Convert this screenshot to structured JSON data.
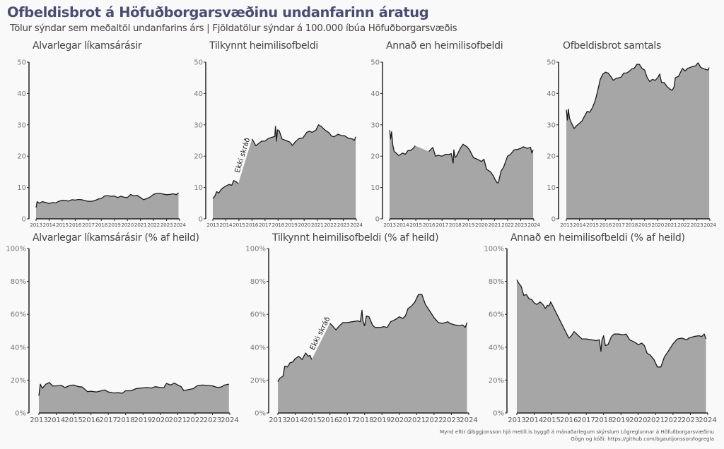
{
  "title": "Ofbeldisbrot á Höfuðborgarsvæðinu undanfarinn áratug",
  "subtitle": "Tölur sýndar sem meðaltöl undanfarins árs | Fjöldatölur sýndar á 100.000 íbúa Höfuðborgarsvæðis",
  "caption": {
    "line1": "Mynd eftir @bggjonsson hjá metill.is byggð á mánaðarlegum skýrslum Lögreglunnar á Höfuðborgarsvæðinu",
    "line2": "Gögn og kóði: https://github.com/bgautijonsson/logregla"
  },
  "colors": {
    "fill": "#a6a6a6",
    "line": "#1a1a1a",
    "axis": "#222222",
    "title": "#484d73"
  },
  "chart_data": [
    {
      "type": "area",
      "title": "Alvarlegar líkamsárásir",
      "xlabel": "",
      "ylabel": "",
      "xlim": [
        2013,
        2024
      ],
      "ylim": [
        0,
        50
      ],
      "xticks": [
        "2013",
        "2014",
        "2015",
        "2016",
        "2017",
        "2018",
        "2019",
        "2020",
        "2021",
        "2022",
        "2023",
        "2024"
      ],
      "yticks": [
        "0",
        "10",
        "20",
        "30",
        "40",
        "50"
      ],
      "x": [
        2013.0,
        2013.08,
        2013.25,
        2013.5,
        2013.75,
        2014.0,
        2014.25,
        2014.5,
        2014.75,
        2015.0,
        2015.25,
        2015.5,
        2015.75,
        2016.0,
        2016.25,
        2016.5,
        2016.75,
        2017.0,
        2017.25,
        2017.5,
        2017.75,
        2018.0,
        2018.25,
        2018.5,
        2018.75,
        2019.0,
        2019.25,
        2019.5,
        2019.75,
        2020.0,
        2020.25,
        2020.5,
        2020.75,
        2021.0,
        2021.25,
        2021.5,
        2021.75,
        2022.0,
        2022.25,
        2022.5,
        2022.75,
        2023.0,
        2023.25,
        2023.5,
        2023.75,
        2023.92
      ],
      "values": [
        3.6,
        5.5,
        5.0,
        5.5,
        5.2,
        4.9,
        5.2,
        5.1,
        5.6,
        5.9,
        5.8,
        5.7,
        6.1,
        6.0,
        6.2,
        6.1,
        5.8,
        5.6,
        5.6,
        5.8,
        6.3,
        6.5,
        7.3,
        7.4,
        7.2,
        7.3,
        6.8,
        7.2,
        6.9,
        6.8,
        7.8,
        7.3,
        7.5,
        6.8,
        6.1,
        6.5,
        7.0,
        7.8,
        8.1,
        8.1,
        7.9,
        7.7,
        7.8,
        8.0,
        7.7,
        8.3
      ],
      "gap": null
    },
    {
      "type": "area",
      "title": "Tilkynnt heimilisofbeldi",
      "xlabel": "",
      "ylabel": "",
      "xlim": [
        2013,
        2024
      ],
      "ylim": [
        0,
        50
      ],
      "xticks": [
        "2013",
        "2014",
        "2015",
        "2016",
        "2017",
        "2018",
        "2019",
        "2020",
        "2021",
        "2022",
        "2023",
        "2024"
      ],
      "yticks": [
        "0",
        "10",
        "20",
        "30",
        "40",
        "50"
      ],
      "x": [
        2013.0,
        2013.15,
        2013.3,
        2013.45,
        2013.6,
        2013.75,
        2014.0,
        2014.25,
        2014.45,
        2014.6,
        2014.8,
        2014.95,
        2016.0,
        2016.15,
        2016.3,
        2016.5,
        2016.75,
        2017.0,
        2017.25,
        2017.5,
        2017.75,
        2017.8,
        2017.85,
        2017.88,
        2017.95,
        2018.1,
        2018.3,
        2018.6,
        2018.9,
        2019.1,
        2019.3,
        2019.6,
        2019.9,
        2020.2,
        2020.4,
        2020.6,
        2020.9,
        2021.1,
        2021.3,
        2021.6,
        2021.9,
        2022.1,
        2022.3,
        2022.6,
        2022.9,
        2023.1,
        2023.4,
        2023.7,
        2023.85,
        2023.95
      ],
      "values": [
        6.5,
        7.2,
        8.7,
        8.2,
        9.2,
        9.8,
        10.5,
        11.0,
        10.7,
        12.2,
        11.8,
        11.2,
        25.5,
        24.5,
        23.3,
        24.0,
        24.8,
        24.8,
        25.6,
        26.0,
        26.3,
        29.5,
        27.0,
        24.8,
        28.4,
        28.0,
        25.5,
        25.0,
        24.5,
        23.4,
        24.5,
        25.6,
        25.8,
        27.6,
        28.0,
        27.6,
        28.3,
        30.0,
        29.5,
        28.3,
        27.5,
        26.4,
        26.2,
        27.0,
        26.5,
        26.5,
        25.7,
        25.5,
        25.0,
        26.2
      ],
      "annotation": {
        "text": "Ekki skráð",
        "from": 2014.95,
        "to": 2016.0
      }
    },
    {
      "type": "area",
      "title": "Annað en heimilisofbeldi",
      "xlabel": "",
      "ylabel": "",
      "xlim": [
        2013,
        2024
      ],
      "ylim": [
        0,
        50
      ],
      "xticks": [
        "2013",
        "2014",
        "2015",
        "2016",
        "2017",
        "2018",
        "2019",
        "2020",
        "2021",
        "2022",
        "2023",
        "2024"
      ],
      "yticks": [
        "0",
        "10",
        "20",
        "30",
        "40",
        "50"
      ],
      "x": [
        2013.0,
        2013.08,
        2013.15,
        2013.25,
        2013.35,
        2013.5,
        2013.7,
        2014.0,
        2014.2,
        2014.4,
        2014.6,
        2014.8,
        2014.95,
        2016.0,
        2016.3,
        2016.5,
        2016.7,
        2017.0,
        2017.3,
        2017.5,
        2017.7,
        2017.85,
        2017.9,
        2018.0,
        2018.1,
        2018.4,
        2018.6,
        2018.9,
        2019.1,
        2019.4,
        2019.7,
        2020.0,
        2020.2,
        2020.4,
        2020.7,
        2020.9,
        2021.05,
        2021.2,
        2021.3,
        2021.5,
        2021.7,
        2022.0,
        2022.2,
        2022.5,
        2022.8,
        2023.0,
        2023.2,
        2023.5,
        2023.75,
        2023.85,
        2023.95
      ],
      "values": [
        28.3,
        25.5,
        27.8,
        23.5,
        21.5,
        21.0,
        20.2,
        21.0,
        20.6,
        21.8,
        21.8,
        22.5,
        23.3,
        21.5,
        22.8,
        20.0,
        20.3,
        20.0,
        20.6,
        20.5,
        20.8,
        17.8,
        22.0,
        19.6,
        20.0,
        22.5,
        23.8,
        23.0,
        22.0,
        19.5,
        19.0,
        18.3,
        19.0,
        15.8,
        15.0,
        13.8,
        12.5,
        11.5,
        11.5,
        15.2,
        16.5,
        20.0,
        20.5,
        22.0,
        22.2,
        22.5,
        23.0,
        22.5,
        22.8,
        21.0,
        22.0
      ],
      "annotation": {
        "gap_from": 2014.95,
        "gap_to": 2016.0
      }
    },
    {
      "type": "area",
      "title": "Ofbeldisbrot samtals",
      "xlabel": "",
      "ylabel": "",
      "xlim": [
        2013,
        2024
      ],
      "ylim": [
        0,
        50
      ],
      "xticks": [
        "2013",
        "2014",
        "2015",
        "2016",
        "2017",
        "2018",
        "2019",
        "2020",
        "2021",
        "2022",
        "2023",
        "2024"
      ],
      "yticks": [
        "0",
        "10",
        "20",
        "30",
        "40",
        "50"
      ],
      "x": [
        2013.0,
        2013.08,
        2013.15,
        2013.25,
        2013.4,
        2013.6,
        2013.8,
        2014.0,
        2014.2,
        2014.4,
        2014.6,
        2014.8,
        2015.0,
        2015.2,
        2015.4,
        2015.6,
        2015.8,
        2016.0,
        2016.2,
        2016.4,
        2016.6,
        2016.8,
        2017.0,
        2017.2,
        2017.4,
        2017.6,
        2017.8,
        2018.0,
        2018.2,
        2018.4,
        2018.6,
        2018.8,
        2019.0,
        2019.2,
        2019.4,
        2019.6,
        2019.8,
        2020.0,
        2020.15,
        2020.3,
        2020.5,
        2020.7,
        2020.9,
        2021.1,
        2021.25,
        2021.35,
        2021.6,
        2021.9,
        2022.1,
        2022.3,
        2022.6,
        2022.9,
        2023.1,
        2023.3,
        2023.6,
        2023.85,
        2023.95
      ],
      "values": [
        34.8,
        31.5,
        35.0,
        32.0,
        30.5,
        28.8,
        29.8,
        30.5,
        31.2,
        32.8,
        34.3,
        34.0,
        35.5,
        37.5,
        40.8,
        44.5,
        46.2,
        46.8,
        46.5,
        45.5,
        44.2,
        44.8,
        45.0,
        45.2,
        46.5,
        46.5,
        47.0,
        47.8,
        48.0,
        49.3,
        49.3,
        48.0,
        47.5,
        45.0,
        43.8,
        44.5,
        44.2,
        45.0,
        46.2,
        43.5,
        43.5,
        42.3,
        41.5,
        41.0,
        42.0,
        45.0,
        45.5,
        48.0,
        47.2,
        48.0,
        48.5,
        48.8,
        49.8,
        48.3,
        47.8,
        47.5,
        48.3
      ]
    },
    {
      "type": "area",
      "title": "Alvarlegar líkamsárásir (% af heild)",
      "xlabel": "",
      "ylabel": "",
      "xlim": [
        2013,
        2024
      ],
      "ylim": [
        0,
        100
      ],
      "xticks": [
        "2013",
        "2014",
        "2015",
        "2016",
        "2017",
        "2018",
        "2019",
        "2020",
        "2021",
        "2022",
        "2023",
        "2024"
      ],
      "yticks": [
        "0%",
        "20%",
        "40%",
        "60%",
        "80%",
        "100%"
      ],
      "x": [
        2013.0,
        2013.08,
        2013.2,
        2013.4,
        2013.6,
        2013.8,
        2014.0,
        2014.3,
        2014.5,
        2014.8,
        2015.0,
        2015.3,
        2015.5,
        2015.8,
        2016.0,
        2016.3,
        2016.6,
        2016.8,
        2017.0,
        2017.3,
        2017.6,
        2017.8,
        2018.0,
        2018.3,
        2018.6,
        2018.9,
        2019.2,
        2019.5,
        2019.7,
        2020.0,
        2020.2,
        2020.35,
        2020.6,
        2020.8,
        2021.0,
        2021.2,
        2021.35,
        2021.6,
        2021.9,
        2022.1,
        2022.4,
        2022.7,
        2023.0,
        2023.3,
        2023.5,
        2023.7,
        2023.95
      ],
      "values": [
        10.5,
        17.5,
        15.0,
        17.5,
        18.5,
        16.5,
        16.5,
        16.8,
        15.5,
        16.8,
        17.0,
        16.0,
        15.8,
        13.0,
        13.2,
        12.8,
        13.5,
        14.0,
        12.8,
        12.2,
        12.3,
        12.0,
        13.5,
        13.5,
        14.8,
        15.2,
        15.5,
        15.2,
        16.0,
        15.5,
        15.3,
        18.0,
        17.0,
        18.2,
        17.0,
        16.0,
        13.5,
        14.2,
        14.8,
        16.5,
        17.0,
        16.8,
        16.5,
        15.5,
        15.8,
        17.0,
        17.5
      ]
    },
    {
      "type": "area",
      "title": "Tilkynnt heimilisofbeldi (% af heild)",
      "xlabel": "",
      "ylabel": "",
      "xlim": [
        2013,
        2024
      ],
      "ylim": [
        0,
        100
      ],
      "xticks": [
        "2013",
        "2014",
        "2015",
        "2016",
        "2017",
        "2018",
        "2019",
        "2020",
        "2021",
        "2022",
        "2023",
        "2024"
      ],
      "yticks": [
        "0%",
        "20%",
        "40%",
        "60%",
        "80%",
        "100%"
      ],
      "x": [
        2013.0,
        2013.1,
        2013.3,
        2013.4,
        2013.55,
        2013.7,
        2013.85,
        2014.0,
        2014.2,
        2014.4,
        2014.5,
        2014.6,
        2014.75,
        2014.85,
        2014.95,
        2016.0,
        2016.15,
        2016.35,
        2016.5,
        2016.75,
        2017.0,
        2017.3,
        2017.6,
        2017.75,
        2017.85,
        2017.9,
        2018.0,
        2018.1,
        2018.25,
        2018.45,
        2018.6,
        2018.9,
        2019.1,
        2019.3,
        2019.5,
        2019.8,
        2020.0,
        2020.2,
        2020.35,
        2020.5,
        2020.7,
        2020.9,
        2021.1,
        2021.3,
        2021.5,
        2021.75,
        2022.0,
        2022.25,
        2022.5,
        2022.8,
        2022.9,
        2023.2,
        2023.5,
        2023.65,
        2023.8,
        2023.9
      ],
      "values": [
        19.0,
        21.0,
        22.5,
        28.5,
        28.0,
        30.5,
        31.0,
        33.0,
        34.5,
        32.5,
        34.5,
        36.5,
        34.5,
        35.0,
        32.5,
        54.5,
        53.0,
        50.5,
        52.5,
        55.0,
        55.0,
        55.5,
        56.0,
        55.5,
        62.5,
        56.0,
        53.0,
        59.0,
        58.5,
        53.5,
        52.0,
        52.0,
        52.5,
        52.0,
        55.5,
        57.0,
        58.5,
        57.5,
        59.0,
        63.5,
        65.0,
        67.5,
        72.0,
        72.0,
        66.0,
        62.0,
        58.0,
        55.0,
        54.5,
        55.5,
        54.5,
        53.5,
        53.0,
        53.5,
        52.0,
        55.0
      ],
      "annotation": {
        "text": "Ekki skráð",
        "from": 2014.95,
        "to": 2016.0
      }
    },
    {
      "type": "area",
      "title": "Annað en heimilisofbeldi (% af heild)",
      "xlabel": "",
      "ylabel": "",
      "xlim": [
        2013,
        2024
      ],
      "ylim": [
        0,
        100
      ],
      "xticks": [
        "2013",
        "2014",
        "2015",
        "2016",
        "2017",
        "2018",
        "2019",
        "2020",
        "2021",
        "2022",
        "2023",
        "2024"
      ],
      "yticks": [
        "0%",
        "20%",
        "40%",
        "60%",
        "80%",
        "100%"
      ],
      "x": [
        2013.0,
        2013.1,
        2013.25,
        2013.4,
        2013.55,
        2013.7,
        2013.85,
        2014.0,
        2014.15,
        2014.35,
        2014.5,
        2014.65,
        2014.75,
        2014.85,
        2014.95,
        2016.0,
        2016.15,
        2016.3,
        2016.5,
        2016.75,
        2017.0,
        2017.3,
        2017.6,
        2017.75,
        2017.85,
        2017.9,
        2018.0,
        2018.1,
        2018.25,
        2018.45,
        2018.6,
        2018.9,
        2019.1,
        2019.3,
        2019.5,
        2019.8,
        2020.0,
        2020.2,
        2020.35,
        2020.5,
        2020.7,
        2020.9,
        2021.1,
        2021.3,
        2021.5,
        2021.75,
        2022.0,
        2022.25,
        2022.5,
        2022.8,
        2022.9,
        2023.2,
        2023.5,
        2023.65,
        2023.8,
        2023.9
      ],
      "values": [
        81.0,
        79.0,
        77.0,
        71.5,
        72.0,
        69.5,
        69.0,
        67.0,
        66.0,
        67.5,
        66.0,
        63.5,
        65.5,
        65.0,
        67.5,
        45.5,
        47.0,
        49.5,
        47.5,
        45.0,
        45.0,
        44.5,
        44.0,
        44.5,
        37.5,
        44.0,
        47.0,
        41.0,
        41.5,
        46.5,
        48.0,
        48.0,
        47.5,
        48.0,
        44.5,
        43.0,
        41.5,
        42.5,
        41.0,
        36.5,
        35.0,
        32.5,
        28.0,
        28.0,
        34.0,
        38.0,
        42.0,
        45.0,
        45.5,
        44.5,
        45.5,
        46.5,
        47.0,
        46.5,
        48.0,
        45.0
      ]
    }
  ]
}
